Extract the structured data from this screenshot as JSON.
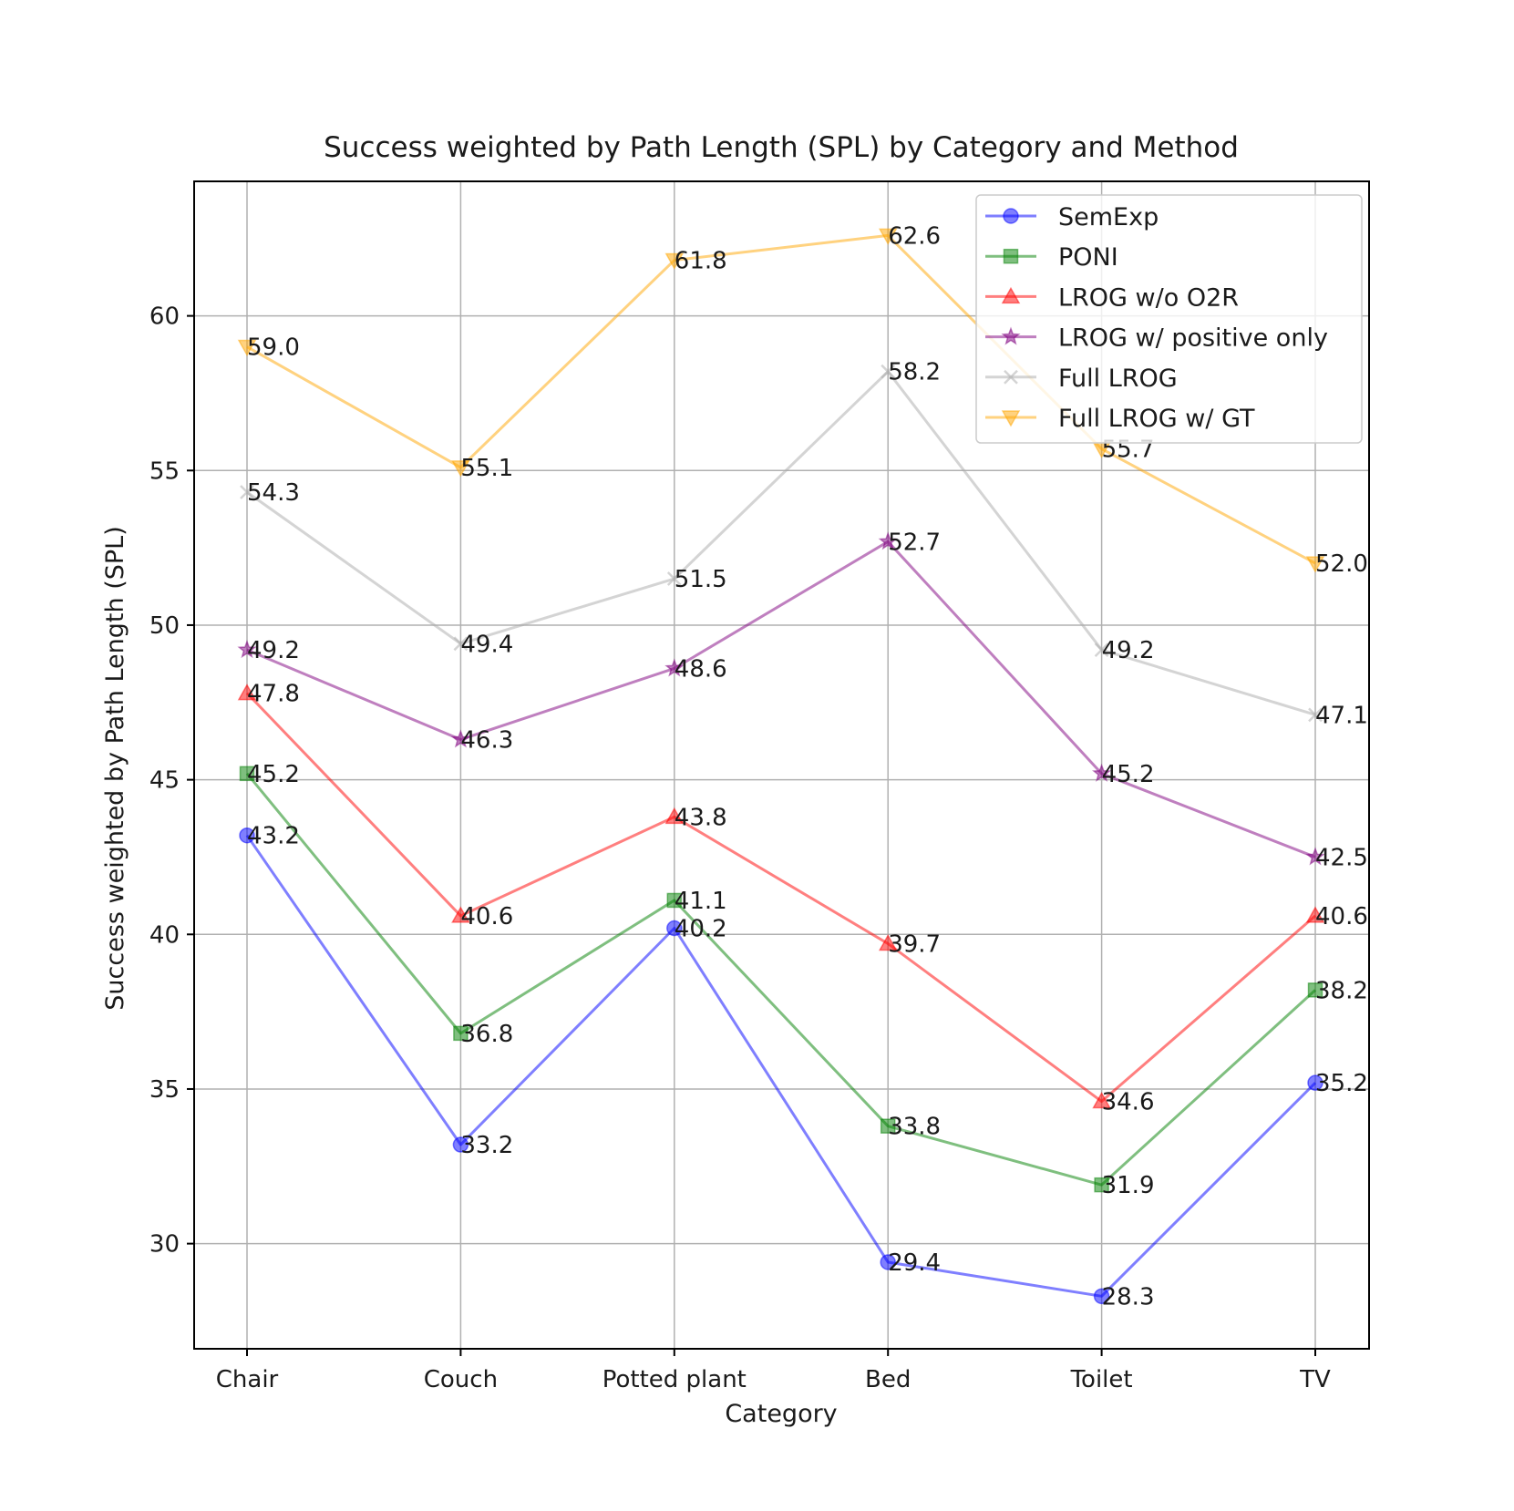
{
  "chart_data": {
    "type": "line",
    "title": "Success weighted by Path Length (SPL) by Category and Method",
    "xlabel": "Category",
    "ylabel": "Success weighted by Path Length (SPL)",
    "categories": [
      "Chair",
      "Couch",
      "Potted plant",
      "Bed",
      "Toilet",
      "TV"
    ],
    "ylim": [
      26.6,
      64.35
    ],
    "yticks": [
      30,
      35,
      40,
      45,
      50,
      55,
      60
    ],
    "grid": true,
    "legend_position": "top-right",
    "series": [
      {
        "name": "SemExp",
        "marker": "circle",
        "color": "#0000ff",
        "values": [
          43.2,
          33.2,
          40.2,
          29.4,
          28.3,
          35.2
        ]
      },
      {
        "name": "PONI",
        "marker": "square",
        "color": "#008000",
        "values": [
          45.2,
          36.8,
          41.1,
          33.8,
          31.9,
          38.2
        ]
      },
      {
        "name": "LROG w/o O2R",
        "marker": "triangle-up",
        "color": "#ff0000",
        "values": [
          47.8,
          40.6,
          43.8,
          39.7,
          34.6,
          40.6
        ]
      },
      {
        "name": "LROG w/ positive only",
        "marker": "star",
        "color": "#800080",
        "values": [
          49.2,
          46.3,
          48.6,
          52.7,
          45.2,
          42.5
        ]
      },
      {
        "name": "Full LROG",
        "marker": "x",
        "color": "#a9a9a9",
        "values": [
          54.3,
          49.4,
          51.5,
          58.2,
          49.2,
          47.1
        ]
      },
      {
        "name": "Full LROG w/ GT",
        "marker": "triangle-down",
        "color": "#ffa500",
        "values": [
          59.0,
          55.1,
          61.8,
          62.6,
          55.7,
          52.0
        ]
      }
    ]
  }
}
